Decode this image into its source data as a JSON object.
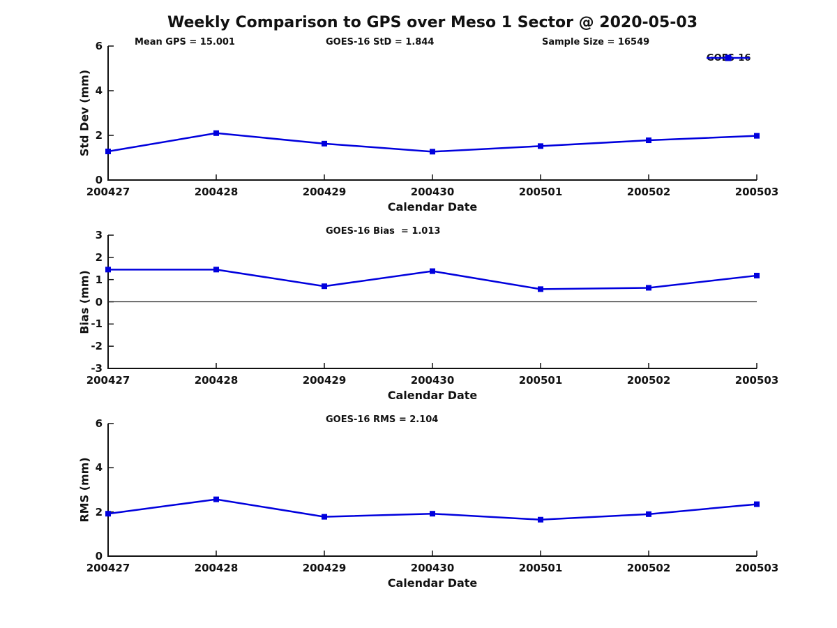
{
  "title": "Weekly Comparison to GPS over Meso 1 Sector @ 2020-05-03",
  "line_color": "#0000dd",
  "legend": {
    "label": "GOES-16",
    "marker": "square"
  },
  "chart_data": [
    {
      "type": "line",
      "name": "std-dev-vs-date",
      "categories": [
        "200427",
        "200428",
        "200429",
        "200430",
        "200501",
        "200502",
        "200503"
      ],
      "series": [
        {
          "name": "GOES-16",
          "values": [
            1.28,
            2.1,
            1.63,
            1.27,
            1.52,
            1.78,
            1.98
          ]
        }
      ],
      "xlabel": "Calendar Date",
      "ylabel": "Std Dev (mm)",
      "ylim": [
        0,
        6
      ],
      "yticks": [
        0,
        2,
        4,
        6
      ],
      "grid": false,
      "legend_position": "top-right",
      "annotations": [
        "Mean GPS = 15.001",
        "GOES-16 StD = 1.844",
        "Sample Size = 16549"
      ]
    },
    {
      "type": "line",
      "name": "bias-vs-date",
      "categories": [
        "200427",
        "200428",
        "200429",
        "200430",
        "200501",
        "200502",
        "200503"
      ],
      "series": [
        {
          "name": "GOES-16",
          "values": [
            1.45,
            1.45,
            0.7,
            1.38,
            0.57,
            0.63,
            1.18
          ]
        }
      ],
      "xlabel": "Calendar Date",
      "ylabel": "Bias (mm)",
      "ylim": [
        -3,
        3
      ],
      "yticks": [
        3,
        2,
        1,
        0,
        -1,
        -2,
        -3
      ],
      "zero_line": true,
      "grid": false,
      "annotations": [
        "GOES-16 Bias  = 1.013"
      ]
    },
    {
      "type": "line",
      "name": "rms-vs-date",
      "categories": [
        "200427",
        "200428",
        "200429",
        "200430",
        "200501",
        "200502",
        "200503"
      ],
      "series": [
        {
          "name": "GOES-16",
          "values": [
            1.92,
            2.57,
            1.78,
            1.92,
            1.65,
            1.9,
            2.35
          ]
        }
      ],
      "xlabel": "Calendar Date",
      "ylabel": "RMS (mm)",
      "ylim": [
        0,
        6
      ],
      "yticks": [
        0,
        2,
        4,
        6
      ],
      "grid": false,
      "annotations": [
        "GOES-16 RMS = 2.104"
      ]
    }
  ]
}
